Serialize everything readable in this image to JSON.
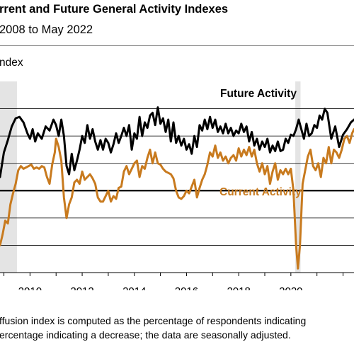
{
  "title": "rrent and Future General Activity Indexes",
  "subtitle": "2008 to May 2022",
  "ylabel": "ndex",
  "note": {
    "line1": "ffusion index is computed as the percentage of respondents indicating",
    "line2": "ercentage indicating a decrease; the data are seasonally adjusted."
  },
  "colors": {
    "future": "#000000",
    "current": "#c87a1e",
    "recession": "#e4e4e4",
    "grid": "#000000"
  },
  "chart_data": {
    "type": "line",
    "x_axis": {
      "ticks": [
        "2010",
        "2012",
        "2014",
        "2016",
        "2018",
        "2020"
      ],
      "xlim": [
        2008.85,
        2022.42
      ]
    },
    "y_axis": {
      "ylim": [
        -60,
        80
      ],
      "gridlines": [
        -60,
        -40,
        -20,
        0,
        20,
        40,
        60
      ],
      "zero_line": 0
    },
    "recessions": [
      [
        2008.85,
        2009.5
      ],
      [
        2020.17,
        2020.37
      ]
    ],
    "series": [
      {
        "name": "Future Activity",
        "color": "#000000",
        "points": [
          [
            2008.85,
            10
          ],
          [
            2009.0,
            28
          ],
          [
            2009.15,
            37
          ],
          [
            2009.3,
            47
          ],
          [
            2009.45,
            53
          ],
          [
            2009.6,
            54
          ],
          [
            2009.75,
            50
          ],
          [
            2009.9,
            42
          ],
          [
            2010.0,
            38
          ],
          [
            2010.1,
            45
          ],
          [
            2010.2,
            36
          ],
          [
            2010.3,
            42
          ],
          [
            2010.45,
            38
          ],
          [
            2010.6,
            47
          ],
          [
            2010.75,
            44
          ],
          [
            2010.9,
            52
          ],
          [
            2011.0,
            48
          ],
          [
            2011.1,
            40
          ],
          [
            2011.2,
            52
          ],
          [
            2011.3,
            40
          ],
          [
            2011.4,
            18
          ],
          [
            2011.5,
            12
          ],
          [
            2011.6,
            27
          ],
          [
            2011.7,
            15
          ],
          [
            2011.8,
            22
          ],
          [
            2011.9,
            30
          ],
          [
            2012.0,
            40
          ],
          [
            2012.1,
            35
          ],
          [
            2012.2,
            48
          ],
          [
            2012.3,
            38
          ],
          [
            2012.4,
            45
          ],
          [
            2012.5,
            36
          ],
          [
            2012.6,
            30
          ],
          [
            2012.7,
            37
          ],
          [
            2012.8,
            30
          ],
          [
            2012.9,
            38
          ],
          [
            2013.0,
            35
          ],
          [
            2013.1,
            28
          ],
          [
            2013.2,
            34
          ],
          [
            2013.3,
            42
          ],
          [
            2013.4,
            35
          ],
          [
            2013.5,
            40
          ],
          [
            2013.6,
            46
          ],
          [
            2013.7,
            40
          ],
          [
            2013.8,
            48
          ],
          [
            2013.9,
            30
          ],
          [
            2014.0,
            42
          ],
          [
            2014.1,
            38
          ],
          [
            2014.2,
            54
          ],
          [
            2014.3,
            40
          ],
          [
            2014.4,
            50
          ],
          [
            2014.5,
            46
          ],
          [
            2014.6,
            55
          ],
          [
            2014.7,
            57
          ],
          [
            2014.8,
            48
          ],
          [
            2014.9,
            61
          ],
          [
            2015.0,
            49
          ],
          [
            2015.1,
            53
          ],
          [
            2015.2,
            43
          ],
          [
            2015.3,
            52
          ],
          [
            2015.4,
            36
          ],
          [
            2015.5,
            50
          ],
          [
            2015.6,
            35
          ],
          [
            2015.7,
            40
          ],
          [
            2015.8,
            33
          ],
          [
            2015.9,
            38
          ],
          [
            2016.0,
            30
          ],
          [
            2016.1,
            34
          ],
          [
            2016.2,
            27
          ],
          [
            2016.3,
            40
          ],
          [
            2016.4,
            32
          ],
          [
            2016.5,
            48
          ],
          [
            2016.6,
            44
          ],
          [
            2016.7,
            52
          ],
          [
            2016.8,
            45
          ],
          [
            2016.9,
            54
          ],
          [
            2017.0,
            46
          ],
          [
            2017.1,
            52
          ],
          [
            2017.2,
            43
          ],
          [
            2017.3,
            47
          ],
          [
            2017.4,
            42
          ],
          [
            2017.5,
            49
          ],
          [
            2017.6,
            42
          ],
          [
            2017.7,
            46
          ],
          [
            2017.8,
            40
          ],
          [
            2017.9,
            44
          ],
          [
            2018.0,
            42
          ],
          [
            2018.1,
            49
          ],
          [
            2018.2,
            43
          ],
          [
            2018.3,
            47
          ],
          [
            2018.4,
            36
          ],
          [
            2018.5,
            43
          ],
          [
            2018.6,
            33
          ],
          [
            2018.7,
            38
          ],
          [
            2018.8,
            30
          ],
          [
            2018.9,
            36
          ],
          [
            2019.0,
            32
          ],
          [
            2019.1,
            38
          ],
          [
            2019.2,
            28
          ],
          [
            2019.3,
            33
          ],
          [
            2019.4,
            29
          ],
          [
            2019.5,
            36
          ],
          [
            2019.6,
            29
          ],
          [
            2019.7,
            30
          ],
          [
            2019.8,
            38
          ],
          [
            2019.9,
            35
          ],
          [
            2020.0,
            41
          ],
          [
            2020.1,
            40
          ],
          [
            2020.2,
            45
          ],
          [
            2020.3,
            52
          ],
          [
            2020.4,
            45
          ],
          [
            2020.5,
            38
          ],
          [
            2020.6,
            49
          ],
          [
            2020.7,
            40
          ],
          [
            2020.8,
            42
          ],
          [
            2020.9,
            48
          ],
          [
            2021.0,
            46
          ],
          [
            2021.1,
            55
          ],
          [
            2021.2,
            52
          ],
          [
            2021.3,
            60
          ],
          [
            2021.4,
            57
          ],
          [
            2021.55,
            38
          ],
          [
            2021.7,
            47
          ],
          [
            2021.85,
            32
          ],
          [
            2022.0,
            41
          ],
          [
            2022.15,
            45
          ],
          [
            2022.3,
            50
          ],
          [
            2022.42,
            52
          ]
        ]
      },
      {
        "name": "Current Activity",
        "color": "#c87a1e",
        "points": [
          [
            2008.85,
            -40
          ],
          [
            2008.95,
            -32
          ],
          [
            2009.05,
            -22
          ],
          [
            2009.15,
            -24
          ],
          [
            2009.25,
            -10
          ],
          [
            2009.35,
            -2
          ],
          [
            2009.45,
            5
          ],
          [
            2009.55,
            15
          ],
          [
            2009.65,
            18
          ],
          [
            2009.75,
            16
          ],
          [
            2009.85,
            17
          ],
          [
            2009.95,
            18
          ],
          [
            2010.05,
            19
          ],
          [
            2010.15,
            16
          ],
          [
            2010.25,
            17
          ],
          [
            2010.35,
            16
          ],
          [
            2010.45,
            18
          ],
          [
            2010.55,
            17
          ],
          [
            2010.65,
            10
          ],
          [
            2010.75,
            5
          ],
          [
            2010.85,
            19
          ],
          [
            2010.95,
            28
          ],
          [
            2011.0,
            38
          ],
          [
            2011.1,
            32
          ],
          [
            2011.2,
            22
          ],
          [
            2011.3,
            -5
          ],
          [
            2011.4,
            -20
          ],
          [
            2011.5,
            -10
          ],
          [
            2011.6,
            -5
          ],
          [
            2011.7,
            6
          ],
          [
            2011.8,
            8
          ],
          [
            2011.9,
            5
          ],
          [
            2012.0,
            14
          ],
          [
            2012.1,
            8
          ],
          [
            2012.2,
            10
          ],
          [
            2012.3,
            12
          ],
          [
            2012.4,
            9
          ],
          [
            2012.5,
            5
          ],
          [
            2012.6,
            -5
          ],
          [
            2012.7,
            -8
          ],
          [
            2012.8,
            -8
          ],
          [
            2012.9,
            -4
          ],
          [
            2013.0,
            0
          ],
          [
            2013.1,
            -8
          ],
          [
            2013.2,
            -4
          ],
          [
            2013.3,
            -6
          ],
          [
            2013.4,
            2
          ],
          [
            2013.5,
            3
          ],
          [
            2013.6,
            14
          ],
          [
            2013.7,
            18
          ],
          [
            2013.8,
            12
          ],
          [
            2013.9,
            16
          ],
          [
            2014.0,
            20
          ],
          [
            2014.1,
            22
          ],
          [
            2014.2,
            10
          ],
          [
            2014.3,
            18
          ],
          [
            2014.4,
            16
          ],
          [
            2014.5,
            24
          ],
          [
            2014.6,
            30
          ],
          [
            2014.7,
            20
          ],
          [
            2014.8,
            28
          ],
          [
            2014.9,
            20
          ],
          [
            2015.0,
            19
          ],
          [
            2015.1,
            16
          ],
          [
            2015.2,
            14
          ],
          [
            2015.3,
            13
          ],
          [
            2015.4,
            12
          ],
          [
            2015.5,
            9
          ],
          [
            2015.6,
            0
          ],
          [
            2015.7,
            -5
          ],
          [
            2015.8,
            -6
          ],
          [
            2015.9,
            -4
          ],
          [
            2016.0,
            0
          ],
          [
            2016.1,
            -2
          ],
          [
            2016.2,
            3
          ],
          [
            2016.3,
            8
          ],
          [
            2016.4,
            -5
          ],
          [
            2016.5,
            2
          ],
          [
            2016.6,
            8
          ],
          [
            2016.7,
            12
          ],
          [
            2016.8,
            19
          ],
          [
            2016.9,
            28
          ],
          [
            2017.0,
            25
          ],
          [
            2017.1,
            33
          ],
          [
            2017.2,
            24
          ],
          [
            2017.3,
            28
          ],
          [
            2017.4,
            22
          ],
          [
            2017.5,
            25
          ],
          [
            2017.6,
            20
          ],
          [
            2017.7,
            24
          ],
          [
            2017.8,
            26
          ],
          [
            2017.9,
            22
          ],
          [
            2018.0,
            31
          ],
          [
            2018.1,
            25
          ],
          [
            2018.2,
            30
          ],
          [
            2018.3,
            26
          ],
          [
            2018.4,
            32
          ],
          [
            2018.5,
            25
          ],
          [
            2018.6,
            30
          ],
          [
            2018.7,
            20
          ],
          [
            2018.8,
            14
          ],
          [
            2018.9,
            20
          ],
          [
            2019.0,
            12
          ],
          [
            2019.1,
            18
          ],
          [
            2019.2,
            5
          ],
          [
            2019.3,
            14
          ],
          [
            2019.4,
            20
          ],
          [
            2019.5,
            8
          ],
          [
            2019.6,
            15
          ],
          [
            2019.7,
            12
          ],
          [
            2019.8,
            16
          ],
          [
            2019.9,
            12
          ],
          [
            2020.0,
            16
          ],
          [
            2020.1,
            0
          ],
          [
            2020.2,
            -40
          ],
          [
            2020.27,
            -57
          ],
          [
            2020.35,
            -40
          ],
          [
            2020.45,
            5
          ],
          [
            2020.55,
            15
          ],
          [
            2020.65,
            25
          ],
          [
            2020.75,
            30
          ],
          [
            2020.85,
            18
          ],
          [
            2020.95,
            15
          ],
          [
            2021.05,
            20
          ],
          [
            2021.15,
            10
          ],
          [
            2021.25,
            24
          ],
          [
            2021.35,
            20
          ],
          [
            2021.45,
            32
          ],
          [
            2021.55,
            20
          ],
          [
            2021.65,
            30
          ],
          [
            2021.75,
            28
          ],
          [
            2021.85,
            24
          ],
          [
            2021.95,
            30
          ],
          [
            2022.05,
            38
          ],
          [
            2022.15,
            40
          ],
          [
            2022.25,
            35
          ],
          [
            2022.35,
            42
          ],
          [
            2022.42,
            45
          ]
        ]
      }
    ],
    "annotations": [
      {
        "text": "Future Activity",
        "series": "Future Activity"
      },
      {
        "text": "Current Activity",
        "series": "Current Activity"
      }
    ]
  }
}
